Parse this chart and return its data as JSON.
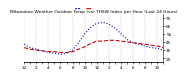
{
  "title": "Milwaukee Weather Outdoor Temp (vs) THSW Index per Hour (Last 24 Hours)",
  "y_ticks": [
    25,
    35,
    45,
    55,
    65,
    75
  ],
  "ylim": [
    20,
    80
  ],
  "background_color": "#ffffff",
  "grid_color": "#aaaaaa",
  "hours": [
    0,
    1,
    2,
    3,
    4,
    5,
    6,
    7,
    8,
    9,
    10,
    11,
    12,
    13,
    14,
    15,
    16,
    17,
    18,
    19,
    20,
    21,
    22,
    23
  ],
  "temp": [
    38,
    36,
    35,
    34,
    33,
    33,
    32,
    32,
    33,
    36,
    39,
    43,
    46,
    46,
    47,
    47,
    46,
    45,
    44,
    43,
    42,
    41,
    40,
    38
  ],
  "thsw": [
    42,
    38,
    36,
    34,
    32,
    31,
    30,
    31,
    35,
    44,
    55,
    63,
    68,
    69,
    67,
    62,
    55,
    48,
    44,
    42,
    40,
    38,
    37,
    35
  ],
  "temp_color": "#cc0000",
  "thsw_color": "#0000cc",
  "temp_style": "--",
  "thsw_style": ":",
  "linewidth": 0.8,
  "xlim": [
    0,
    23
  ]
}
